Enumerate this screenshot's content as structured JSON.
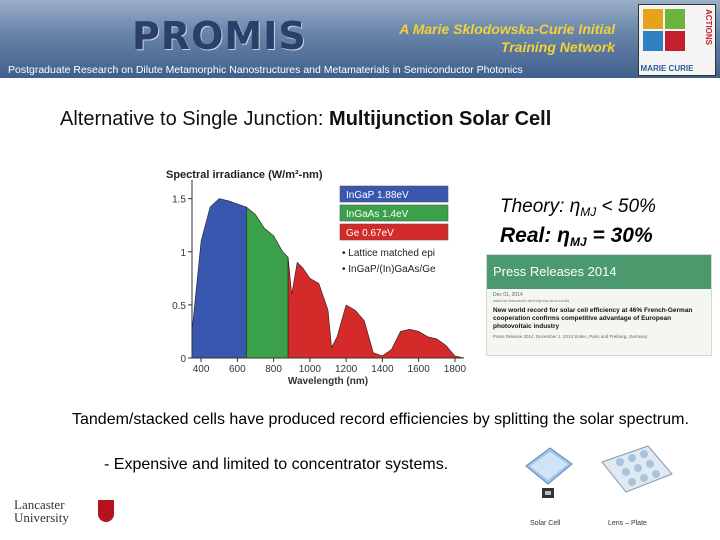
{
  "header": {
    "logo_text": "PROMIS",
    "network_line1": "A Marie Sklodowska-Curie Initial",
    "network_line2": "Training Network",
    "subtitle": "Postgraduate Research on Dilute Metamorphic Nanostructures and Metamaterials in Semiconductor Photonics",
    "mc_word": "MARIE CURIE",
    "mc_vertical": "ACTIONS"
  },
  "slide": {
    "title_prefix": "Alternative to Single Junction: ",
    "title_bold": "Multijunction Solar Cell",
    "theory_text": "Theory: η",
    "theory_sub": "MJ",
    "theory_tail": " < 50%",
    "real_text": "Real: η",
    "real_sub": "MJ",
    "real_tail": " = 30%",
    "body": "Tandem/stacked cells have produced record efficiencies by splitting the solar spectrum.",
    "bullet": "-   Expensive and limited to concentrator systems."
  },
  "press": {
    "banner": "Press Releases 2014",
    "date": "Dec 01, 2014",
    "url": "www.ise.fraunhofer.de/en/press-and-media",
    "headline": "New world record for solar cell efficiency at 46% French-German cooperation confirms competitive advantage of European photovoltaic industry",
    "foot": "Press Release 2014, December 1, 2014 Soitec, Paris and Freiburg, Germany"
  },
  "figure_captions": {
    "solar_cell": "Solar Cell",
    "lens_plate": "Lens – Plate"
  },
  "footer": {
    "university_line1": "Lancaster",
    "university_line2": "University"
  },
  "chart_data": {
    "type": "area",
    "title": "Spectral irradiance (W/m²-nm)",
    "xlabel": "Wavelength (nm)",
    "x_ticks": [
      400,
      600,
      800,
      1000,
      1200,
      1400,
      1600,
      1800
    ],
    "y_ticks": [
      "0",
      "0.5",
      "1",
      "1.5"
    ],
    "xlim": [
      350,
      1850
    ],
    "ylim": [
      0,
      1.6
    ],
    "legend": [
      {
        "label": "InGaP 1.88eV",
        "color": "#3a57b0"
      },
      {
        "label": "InGaAs 1.4eV",
        "color": "#3aa04a"
      },
      {
        "label": "Ge 0.67eV",
        "color": "#d42a2a"
      }
    ],
    "annotations": [
      "• Lattice matched epi",
      "• InGaP/(In)GaAs/Ge"
    ],
    "series": [
      {
        "color": "#3a57b0",
        "x": [
          350,
          400,
          450,
          500,
          550,
          600,
          650
        ],
        "y": [
          0.25,
          1.1,
          1.42,
          1.5,
          1.48,
          1.45,
          1.42
        ]
      },
      {
        "color": "#3aa04a",
        "x": [
          650,
          700,
          750,
          800,
          850,
          880
        ],
        "y": [
          1.42,
          1.35,
          1.22,
          1.15,
          1.0,
          0.95
        ]
      },
      {
        "color": "#d42a2a",
        "x": [
          880,
          900,
          930,
          960,
          1000,
          1050,
          1100,
          1120,
          1150,
          1200,
          1250,
          1300,
          1350,
          1400,
          1450,
          1500,
          1550,
          1600,
          1650,
          1700,
          1750,
          1800,
          1850
        ],
        "y": [
          0.95,
          0.6,
          0.9,
          0.85,
          0.75,
          0.7,
          0.45,
          0.1,
          0.2,
          0.5,
          0.45,
          0.35,
          0.05,
          0.02,
          0.08,
          0.25,
          0.27,
          0.25,
          0.2,
          0.18,
          0.12,
          0.02,
          0.0
        ]
      }
    ]
  },
  "colors": {
    "header_dark": "#3f5f8c",
    "logo_blue": "#2a3f6a",
    "logo_red": "#d2232a",
    "network_yellow": "#f3d13a",
    "press_green": "#4b9a6e",
    "lancaster_red": "#b5121b"
  }
}
